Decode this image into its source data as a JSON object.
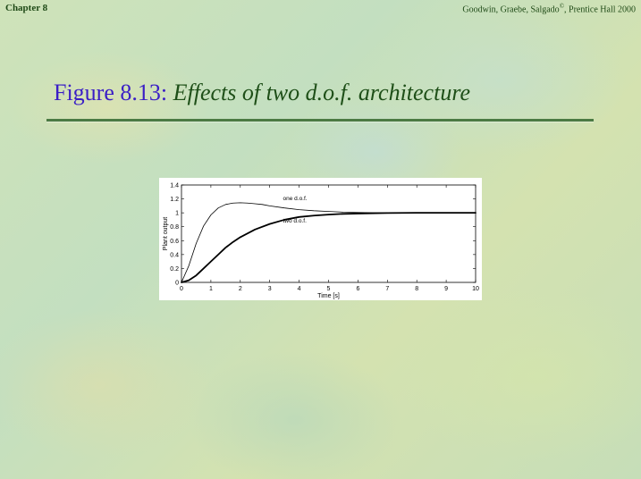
{
  "header": {
    "chapter": "Chapter 8",
    "credit_prefix": "Goodwin, Graebe, Salgado",
    "credit_mark": "©",
    "credit_suffix": ", Prentice Hall 2000"
  },
  "title": {
    "label": "Figure 8.13:",
    "text": "Effects of two d.o.f. architecture"
  },
  "chart_data": {
    "type": "line",
    "xlabel": "Time [s]",
    "ylabel": "Plant output",
    "xlim": [
      0,
      10
    ],
    "ylim": [
      0,
      1.4
    ],
    "xticks": [
      0,
      1,
      2,
      3,
      4,
      5,
      6,
      7,
      8,
      9,
      10
    ],
    "yticks": [
      0,
      0.2,
      0.4,
      0.6,
      0.8,
      1,
      1.2,
      1.4
    ],
    "grid": false,
    "annotations": [
      {
        "text": "one d.o.f.",
        "x": 3.45,
        "y": 1.18
      },
      {
        "text": "two d.o.f.",
        "x": 3.45,
        "y": 0.86
      }
    ],
    "series": [
      {
        "style": "thin",
        "x": [
          0,
          0.25,
          0.5,
          0.75,
          1.0,
          1.25,
          1.5,
          1.75,
          2.0,
          2.25,
          2.5,
          2.75,
          3.0,
          3.5,
          4.0,
          4.5,
          5.0,
          5.5,
          6.0,
          6.5,
          7.0,
          8.0,
          9.0,
          10.0
        ],
        "y": [
          0,
          0.24,
          0.56,
          0.81,
          0.97,
          1.07,
          1.12,
          1.14,
          1.145,
          1.14,
          1.13,
          1.12,
          1.1,
          1.07,
          1.045,
          1.03,
          1.02,
          1.01,
          1.005,
          1.002,
          1.0,
          1.0,
          1.0,
          1.0
        ]
      },
      {
        "style": "thick",
        "x": [
          0,
          0.25,
          0.5,
          0.75,
          1.0,
          1.25,
          1.5,
          1.75,
          2.0,
          2.5,
          3.0,
          3.5,
          4.0,
          4.5,
          5.0,
          5.5,
          6.0,
          7.0,
          8.0,
          9.0,
          10.0
        ],
        "y": [
          0,
          0.03,
          0.1,
          0.2,
          0.3,
          0.4,
          0.5,
          0.58,
          0.65,
          0.76,
          0.84,
          0.9,
          0.94,
          0.96,
          0.975,
          0.985,
          0.99,
          0.997,
          1.0,
          1.0,
          1.0
        ]
      }
    ]
  }
}
